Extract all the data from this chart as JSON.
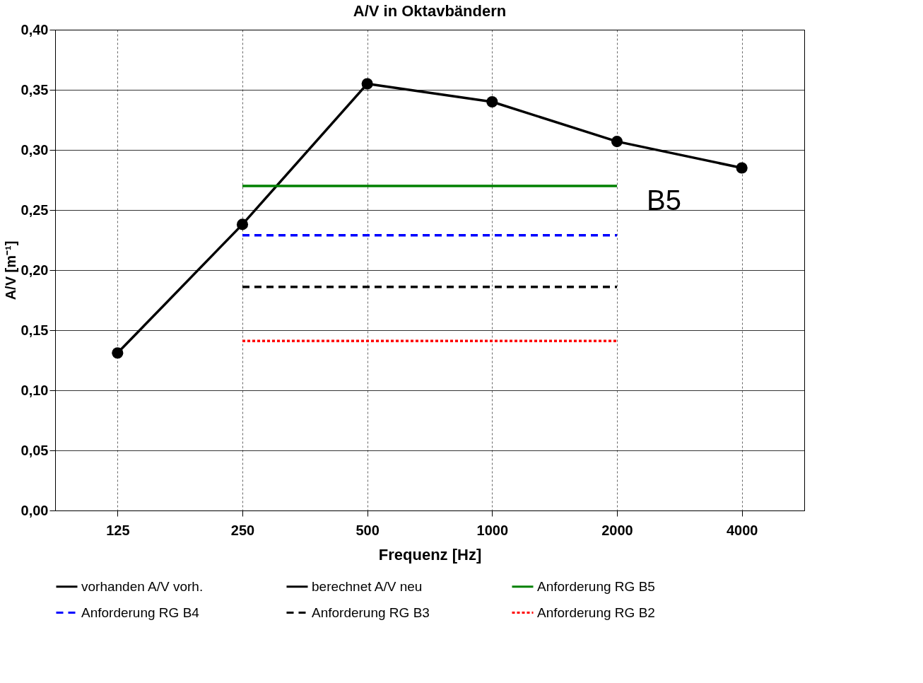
{
  "chart_data": {
    "type": "line",
    "title": "A/V in Oktavbändern",
    "xlabel": "Frequenz [Hz]",
    "ylabel": "A/V [m⁻¹]",
    "categories": [
      "125",
      "250",
      "500",
      "1000",
      "2000",
      "4000"
    ],
    "series": [
      {
        "name": "vorhanden A/V vorh.",
        "color": "#000000",
        "marker": "circle",
        "line_style": "solid",
        "values": [
          0.131,
          0.238,
          0.355,
          0.34,
          0.307,
          0.285
        ]
      },
      {
        "name": "berechnet A/V neu",
        "color": "#000000",
        "line_style": "solid",
        "values": [
          null,
          null,
          null,
          null,
          null,
          null
        ]
      },
      {
        "name": "Anforderung RG B5",
        "color": "#008000",
        "marker": "none",
        "line_style": "solid",
        "values": [
          null,
          0.27,
          0.27,
          0.27,
          0.27,
          null
        ]
      },
      {
        "name": "Anforderung RG B4",
        "color": "#0000ff",
        "marker": "none",
        "line_style": "dashed",
        "values": [
          null,
          0.229,
          0.229,
          0.229,
          0.229,
          null
        ]
      },
      {
        "name": "Anforderung RG B3",
        "color": "#000000",
        "marker": "none",
        "line_style": "dashed",
        "values": [
          null,
          0.186,
          0.186,
          0.186,
          0.186,
          null
        ]
      },
      {
        "name": "Anforderung RG B2",
        "color": "#ff0000",
        "marker": "none",
        "line_style": "dotted",
        "values": [
          null,
          0.141,
          0.141,
          0.141,
          0.141,
          null
        ]
      }
    ],
    "ylim": [
      0,
      0.4
    ],
    "yticks": [
      {
        "value": 0,
        "label": "0,00"
      },
      {
        "value": 0.05,
        "label": "0,05"
      },
      {
        "value": 0.1,
        "label": "0,10"
      },
      {
        "value": 0.15,
        "label": "0,15"
      },
      {
        "value": 0.2,
        "label": "0,20"
      },
      {
        "value": 0.25,
        "label": "0,25"
      },
      {
        "value": 0.3,
        "label": "0,30"
      },
      {
        "value": 0.35,
        "label": "0,35"
      },
      {
        "value": 0.4,
        "label": "0,40"
      }
    ],
    "annotations": [
      {
        "text": "B5",
        "x": "2000",
        "y": 0.27
      }
    ],
    "grid": true,
    "legend": "bottom"
  }
}
